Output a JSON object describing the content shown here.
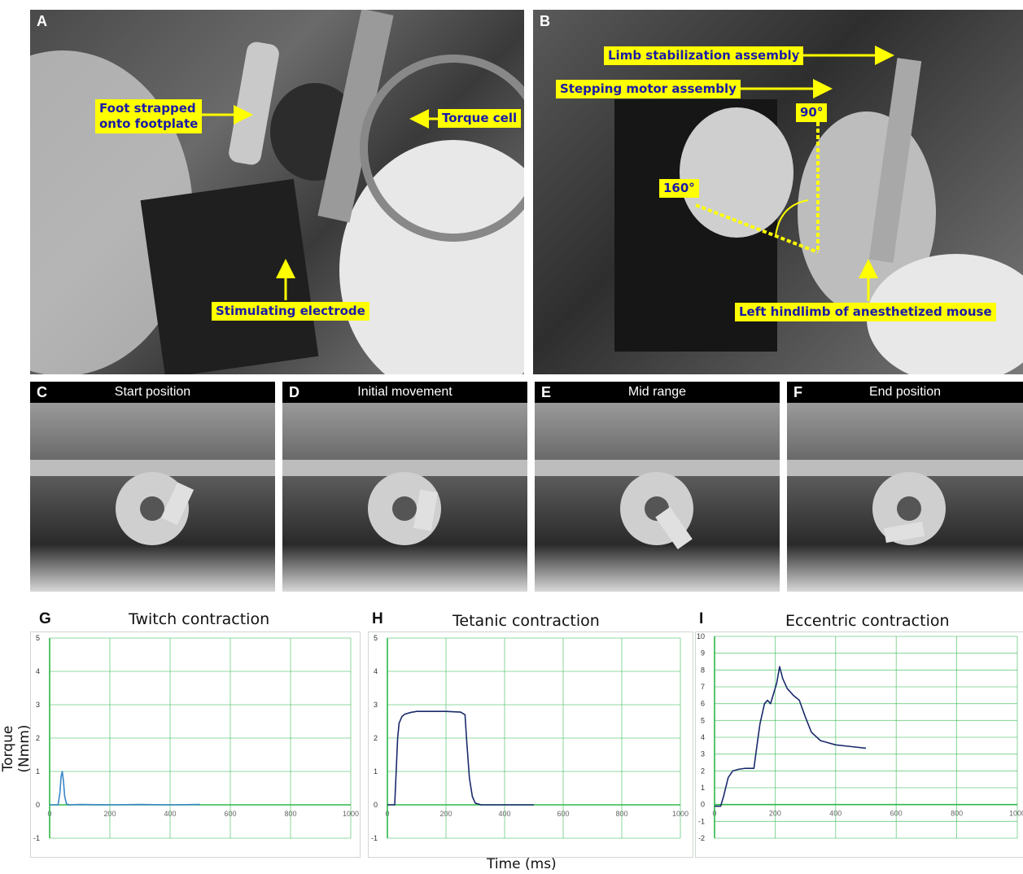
{
  "panels": {
    "A": {
      "letter": "A",
      "callouts": {
        "foot": "Foot strapped\nonto footplate",
        "torque": "Torque cell",
        "electrode": "Stimulating electrode"
      }
    },
    "B": {
      "letter": "B",
      "callouts": {
        "limb": "Limb stabilization assembly",
        "motor": "Stepping motor assembly",
        "deg90": "90°",
        "deg160": "160°",
        "hindlimb": "Left hindlimb of anesthetized mouse"
      }
    },
    "strips": [
      {
        "letter": "C",
        "label": "Start position"
      },
      {
        "letter": "D",
        "label": "Initial movement"
      },
      {
        "letter": "E",
        "label": "Mid range"
      },
      {
        "letter": "F",
        "label": "End position"
      }
    ]
  },
  "colors": {
    "callout_bg": "#ffff00",
    "callout_text": "#1a1aa8",
    "grid": "#2db84a",
    "twitch_line": "#3a86c8",
    "dark_line": "#1a2a6c"
  },
  "shared_axes": {
    "ylabel": "Torque (Nmm)",
    "xlabel": "Time (ms)"
  },
  "chart_data": [
    {
      "letter": "G",
      "type": "line",
      "title": "Twitch contraction",
      "xlim": [
        0,
        1000
      ],
      "xticks": [
        0,
        200,
        400,
        600,
        800,
        1000
      ],
      "ylim": [
        -1,
        5
      ],
      "yticks": [
        -1,
        0,
        1,
        2,
        3,
        4,
        5
      ],
      "grid": true,
      "series": [
        {
          "x": [
            0,
            28,
            34,
            38,
            42,
            46,
            50,
            56,
            65,
            100,
            200,
            300,
            400,
            500
          ],
          "y": [
            0,
            0,
            0.35,
            0.85,
            1.0,
            0.7,
            0.25,
            0.03,
            0,
            0.01,
            0,
            0.01,
            0,
            0.01
          ]
        }
      ]
    },
    {
      "letter": "H",
      "type": "line",
      "title": "Tetanic contraction",
      "xlim": [
        0,
        1000
      ],
      "xticks": [
        0,
        200,
        400,
        600,
        800,
        1000
      ],
      "ylim": [
        -1,
        5
      ],
      "yticks": [
        -1,
        0,
        1,
        2,
        3,
        4,
        5
      ],
      "grid": true,
      "series": [
        {
          "x": [
            0,
            25,
            30,
            35,
            40,
            50,
            60,
            80,
            100,
            150,
            200,
            250,
            265,
            270,
            280,
            290,
            300,
            320,
            400,
            500
          ],
          "y": [
            0,
            0,
            1.0,
            2.0,
            2.45,
            2.65,
            2.72,
            2.77,
            2.8,
            2.8,
            2.8,
            2.78,
            2.7,
            2.0,
            0.8,
            0.25,
            0.05,
            0,
            0,
            0
          ]
        }
      ]
    },
    {
      "letter": "I",
      "type": "line",
      "title": "Eccentric contraction",
      "xlim": [
        0,
        1000
      ],
      "xticks": [
        0,
        200,
        400,
        600,
        800,
        1000
      ],
      "ylim": [
        -2,
        10
      ],
      "yticks": [
        -2,
        -1,
        0,
        1,
        2,
        3,
        4,
        5,
        6,
        7,
        8,
        9,
        10
      ],
      "grid": true,
      "series": [
        {
          "x": [
            0,
            20,
            30,
            45,
            60,
            80,
            100,
            130,
            140,
            150,
            165,
            175,
            185,
            195,
            205,
            215,
            225,
            240,
            260,
            280,
            300,
            320,
            350,
            400,
            450,
            500
          ],
          "y": [
            -0.1,
            -0.1,
            0.5,
            1.6,
            2.0,
            2.1,
            2.15,
            2.15,
            3.5,
            4.8,
            6.0,
            6.2,
            6.0,
            6.6,
            7.2,
            8.2,
            7.5,
            6.9,
            6.5,
            6.2,
            5.2,
            4.3,
            3.8,
            3.55,
            3.45,
            3.35
          ]
        }
      ]
    }
  ]
}
